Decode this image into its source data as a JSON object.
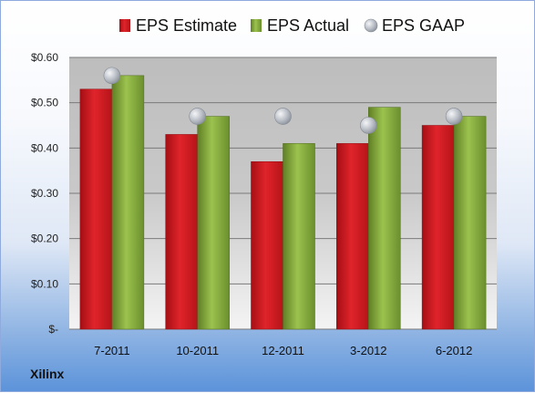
{
  "chart_data": {
    "type": "bar",
    "categories": [
      "7-2011",
      "10-2011",
      "12-2011",
      "3-2012",
      "6-2012"
    ],
    "series": [
      {
        "name": "EPS Estimate",
        "values": [
          0.53,
          0.43,
          0.37,
          0.41,
          0.45
        ],
        "color": "#c8191f"
      },
      {
        "name": "EPS Actual",
        "values": [
          0.56,
          0.47,
          0.41,
          0.49,
          0.47
        ],
        "color": "#7fa43a"
      },
      {
        "name": "EPS GAAP",
        "values": [
          0.56,
          0.47,
          0.47,
          0.45,
          0.47
        ],
        "color": "#b9bec6",
        "style": "marker"
      }
    ],
    "ylim": [
      0,
      0.6
    ],
    "yticks": [
      0,
      0.1,
      0.2,
      0.3,
      0.4,
      0.5,
      0.6
    ],
    "ytick_labels": [
      "$-",
      "$0.10",
      "$0.20",
      "$0.30",
      "$0.40",
      "$0.50",
      "$0.60"
    ],
    "grid": true,
    "legend": "top"
  },
  "company": "Xilinx"
}
